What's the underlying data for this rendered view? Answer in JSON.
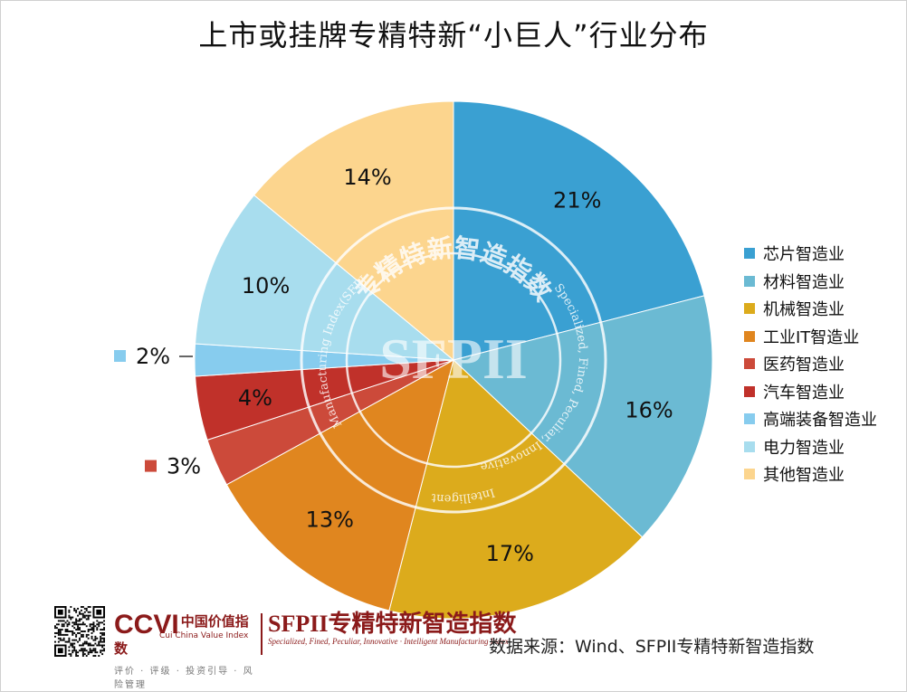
{
  "chart_data": {
    "type": "pie",
    "title": "上市或挂牌专精特新“小巨人”行业分布",
    "slices": [
      {
        "label": "芯片智造业",
        "value": 21,
        "display": "21%",
        "color": "#3aa0d2"
      },
      {
        "label": "材料智造业",
        "value": 16,
        "display": "16%",
        "color": "#6bbad3"
      },
      {
        "label": "机械智造业",
        "value": 17,
        "display": "17%",
        "color": "#dcab1c"
      },
      {
        "label": "工业IT智造业",
        "value": 13,
        "display": "13%",
        "color": "#e0861f"
      },
      {
        "label": "医药智造业",
        "value": 3,
        "display": "3%",
        "color": "#cc4a3a"
      },
      {
        "label": "汽车智造业",
        "value": 4,
        "display": "4%",
        "color": "#c0312a"
      },
      {
        "label": "高端装备智造业",
        "value": 2,
        "display": "2%",
        "color": "#87ccee"
      },
      {
        "label": "电力智造业",
        "value": 10,
        "display": "10%",
        "color": "#a8ddee"
      },
      {
        "label": "其他智造业",
        "value": 14,
        "display": "14%",
        "color": "#fcd58e"
      }
    ],
    "legend_position": "right"
  },
  "watermark": {
    "top_text": "专精特新智造指数",
    "center_text": "SFPII",
    "right_text": "Specialized, Fined, Peculiar, Innovative",
    "bottom_text": "Intelligent",
    "left_text": "Manufacturing Index(SFPII)"
  },
  "footer": {
    "ccvi_main": "CCVI",
    "ccvi_cn": "中国价值指数",
    "ccvi_sub": "Cui China Value Index",
    "ccvi_tagline": "评价 · 评级 · 投资引导 · 风险管理",
    "sfpii_main": "SFPII专精特新智造指数",
    "sfpii_sub": "Specialized, Fined, Peculiar, Innovative · Intelligent Manufacturing Index",
    "source": "数据来源：Wind、SFPII专精特新智造指数"
  },
  "colors": {
    "brand_red": "#8b1a1a"
  }
}
